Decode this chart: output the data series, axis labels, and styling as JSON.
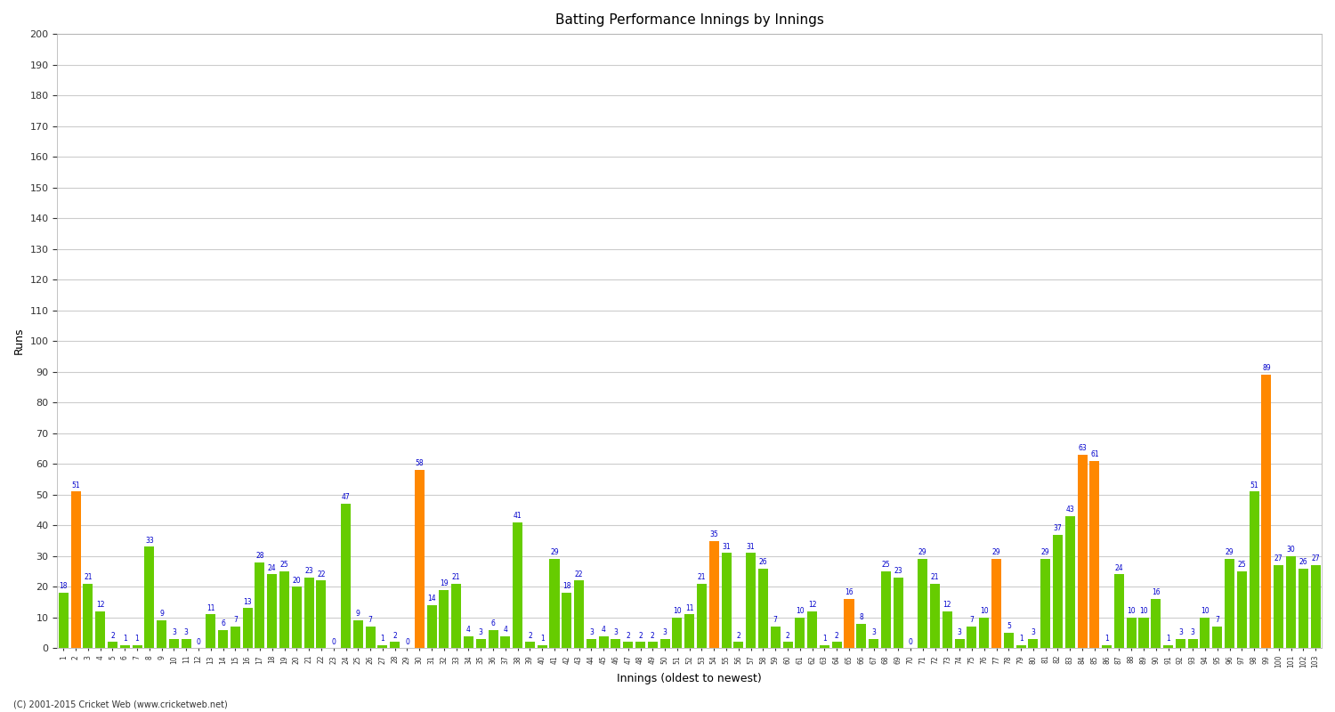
{
  "title": "Batting Performance Innings by Innings",
  "xlabel": "Innings (oldest to newest)",
  "ylabel": "Runs",
  "footer": "(C) 2001-2015 Cricket Web (www.cricketweb.net)",
  "ylim": [
    0,
    200
  ],
  "yticks": [
    0,
    10,
    20,
    30,
    40,
    50,
    60,
    70,
    80,
    90,
    100,
    110,
    120,
    130,
    140,
    150,
    160,
    170,
    180,
    190,
    200
  ],
  "values": [
    18,
    51,
    21,
    12,
    2,
    1,
    1,
    33,
    9,
    3,
    3,
    0,
    11,
    6,
    7,
    13,
    28,
    24,
    25,
    20,
    23,
    22,
    0,
    47,
    9,
    7,
    1,
    2,
    0,
    58,
    14,
    19,
    21,
    4,
    3,
    6,
    4,
    41,
    2,
    1,
    29,
    18,
    22,
    3,
    4,
    3,
    2,
    2,
    2,
    3,
    10,
    11,
    21,
    35,
    31,
    2,
    31,
    26,
    7,
    2,
    10,
    12,
    1,
    2,
    16,
    8,
    3,
    25,
    23,
    0,
    29,
    21,
    12,
    3,
    7,
    10,
    29,
    5,
    1,
    3,
    29,
    37,
    43,
    63,
    61,
    1,
    24,
    10,
    10,
    16,
    1,
    3,
    3,
    10,
    7,
    29,
    25,
    51,
    89,
    27,
    30,
    26,
    27
  ],
  "orange_indices": [
    1,
    29,
    53,
    64,
    76,
    83,
    84,
    98
  ],
  "bar_color_green": "#66cc00",
  "bar_color_orange": "#ff8800",
  "label_color": "#0000cc",
  "background_color": "#ffffff",
  "grid_color": "#cccccc",
  "title_color": "#000000",
  "axis_label_color": "#000000"
}
